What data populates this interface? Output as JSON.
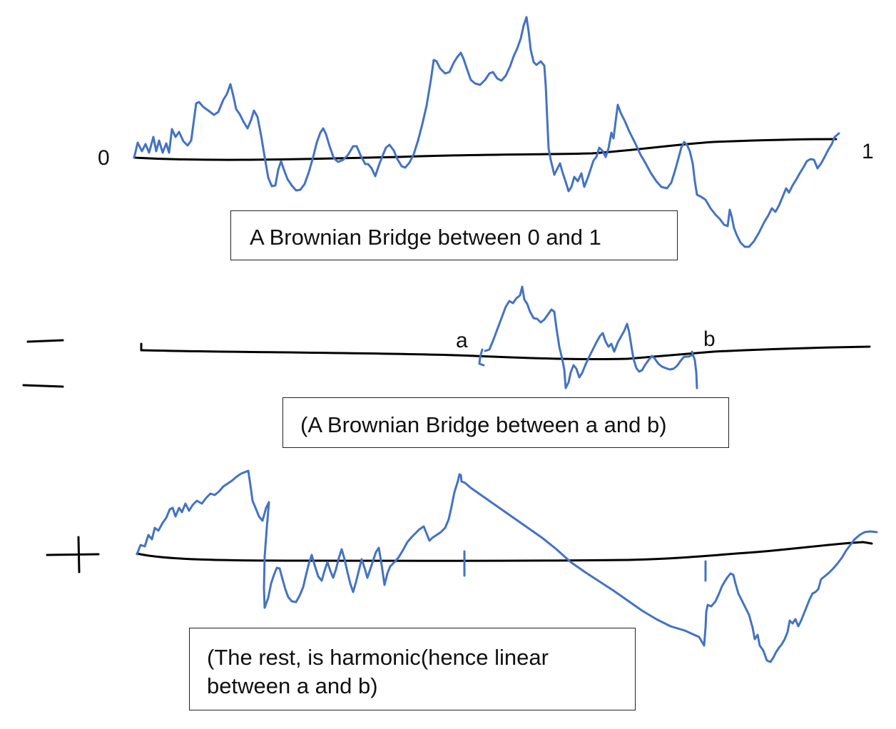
{
  "panel1": {
    "start_label": "0",
    "end_label": "1",
    "caption": "A Brownian Bridge between 0 and 1"
  },
  "panel2": {
    "a_label": "a",
    "b_label": "b",
    "caption": "(A Brownian Bridge between a and b)"
  },
  "panel3": {
    "caption": "(The rest, is harmonic(hence linear\nbetween a and b)"
  },
  "colors": {
    "path": "#4472c4",
    "axis": "#000000"
  }
}
